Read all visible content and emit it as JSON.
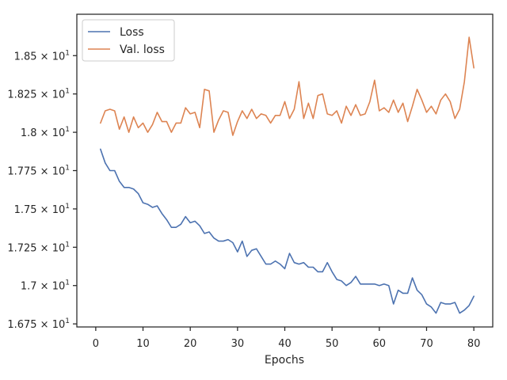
{
  "chart_data": {
    "type": "line",
    "title": "",
    "xlabel": "Epochs",
    "ylabel": "",
    "xlim": [
      -4,
      84
    ],
    "ylim": [
      16.73,
      18.77
    ],
    "x_ticks": [
      {
        "value": 0,
        "label": "0"
      },
      {
        "value": 10,
        "label": "10"
      },
      {
        "value": 20,
        "label": "20"
      },
      {
        "value": 30,
        "label": "30"
      },
      {
        "value": 40,
        "label": "40"
      },
      {
        "value": 50,
        "label": "50"
      },
      {
        "value": 60,
        "label": "60"
      },
      {
        "value": 70,
        "label": "70"
      },
      {
        "value": 80,
        "label": "80"
      }
    ],
    "y_ticks": [
      {
        "value": 16.75,
        "mantissa": "1.675",
        "base": "10",
        "exp": "1"
      },
      {
        "value": 17.0,
        "mantissa": "1.7",
        "base": "10",
        "exp": "1"
      },
      {
        "value": 17.25,
        "mantissa": "1.725",
        "base": "10",
        "exp": "1"
      },
      {
        "value": 17.5,
        "mantissa": "1.75",
        "base": "10",
        "exp": "1"
      },
      {
        "value": 17.75,
        "mantissa": "1.775",
        "base": "10",
        "exp": "1"
      },
      {
        "value": 18.0,
        "mantissa": "1.8",
        "base": "10",
        "exp": "1"
      },
      {
        "value": 18.25,
        "mantissa": "1.825",
        "base": "10",
        "exp": "1"
      },
      {
        "value": 18.5,
        "mantissa": "1.85",
        "base": "10",
        "exp": "1"
      }
    ],
    "legend_position": "top-left",
    "series": [
      {
        "name": "Loss",
        "color": "#4c72b0",
        "x": [
          1,
          2,
          3,
          4,
          5,
          6,
          7,
          8,
          9,
          10,
          11,
          12,
          13,
          14,
          15,
          16,
          17,
          18,
          19,
          20,
          21,
          22,
          23,
          24,
          25,
          26,
          27,
          28,
          29,
          30,
          31,
          32,
          33,
          34,
          35,
          36,
          37,
          38,
          39,
          40,
          41,
          42,
          43,
          44,
          45,
          46,
          47,
          48,
          49,
          50,
          51,
          52,
          53,
          54,
          55,
          56,
          57,
          58,
          59,
          60,
          61,
          62,
          63,
          64,
          65,
          66,
          67,
          68,
          69,
          70,
          71,
          72,
          73,
          74,
          75,
          76,
          77,
          78,
          79,
          80
        ],
        "values": [
          17.89,
          17.8,
          17.75,
          17.75,
          17.68,
          17.64,
          17.64,
          17.63,
          17.6,
          17.54,
          17.53,
          17.51,
          17.52,
          17.47,
          17.43,
          17.38,
          17.38,
          17.4,
          17.45,
          17.41,
          17.42,
          17.39,
          17.34,
          17.35,
          17.31,
          17.29,
          17.29,
          17.3,
          17.28,
          17.22,
          17.29,
          17.19,
          17.23,
          17.24,
          17.19,
          17.14,
          17.14,
          17.16,
          17.14,
          17.11,
          17.21,
          17.15,
          17.14,
          17.15,
          17.12,
          17.12,
          17.09,
          17.09,
          17.15,
          17.09,
          17.04,
          17.03,
          17.0,
          17.02,
          17.06,
          17.01,
          17.01,
          17.01,
          17.01,
          17.0,
          17.01,
          17.0,
          16.88,
          16.97,
          16.95,
          16.95,
          17.05,
          16.97,
          16.94,
          16.88,
          16.86,
          16.82,
          16.89,
          16.88,
          16.88,
          16.89,
          16.82,
          16.84,
          16.87,
          16.93
        ]
      },
      {
        "name": "Val. loss",
        "color": "#dd8452",
        "x": [
          1,
          2,
          3,
          4,
          5,
          6,
          7,
          8,
          9,
          10,
          11,
          12,
          13,
          14,
          15,
          16,
          17,
          18,
          19,
          20,
          21,
          22,
          23,
          24,
          25,
          26,
          27,
          28,
          29,
          30,
          31,
          32,
          33,
          34,
          35,
          36,
          37,
          38,
          39,
          40,
          41,
          42,
          43,
          44,
          45,
          46,
          47,
          48,
          49,
          50,
          51,
          52,
          53,
          54,
          55,
          56,
          57,
          58,
          59,
          60,
          61,
          62,
          63,
          64,
          65,
          66,
          67,
          68,
          69,
          70,
          71,
          72,
          73,
          74,
          75,
          76,
          77,
          78,
          79,
          80
        ],
        "values": [
          18.06,
          18.14,
          18.15,
          18.14,
          18.02,
          18.1,
          18.0,
          18.1,
          18.03,
          18.06,
          18.0,
          18.05,
          18.13,
          18.07,
          18.07,
          18.0,
          18.06,
          18.06,
          18.16,
          18.12,
          18.13,
          18.03,
          18.28,
          18.27,
          18.0,
          18.08,
          18.14,
          18.13,
          17.98,
          18.07,
          18.14,
          18.09,
          18.15,
          18.09,
          18.12,
          18.11,
          18.06,
          18.11,
          18.11,
          18.2,
          18.09,
          18.15,
          18.33,
          18.09,
          18.19,
          18.09,
          18.24,
          18.25,
          18.12,
          18.11,
          18.14,
          18.06,
          18.17,
          18.11,
          18.18,
          18.11,
          18.12,
          18.2,
          18.34,
          18.14,
          18.16,
          18.13,
          18.21,
          18.13,
          18.19,
          18.07,
          18.17,
          18.28,
          18.21,
          18.13,
          18.17,
          18.12,
          18.21,
          18.25,
          18.2,
          18.09,
          18.15,
          18.33,
          18.62,
          18.42
        ]
      }
    ]
  }
}
